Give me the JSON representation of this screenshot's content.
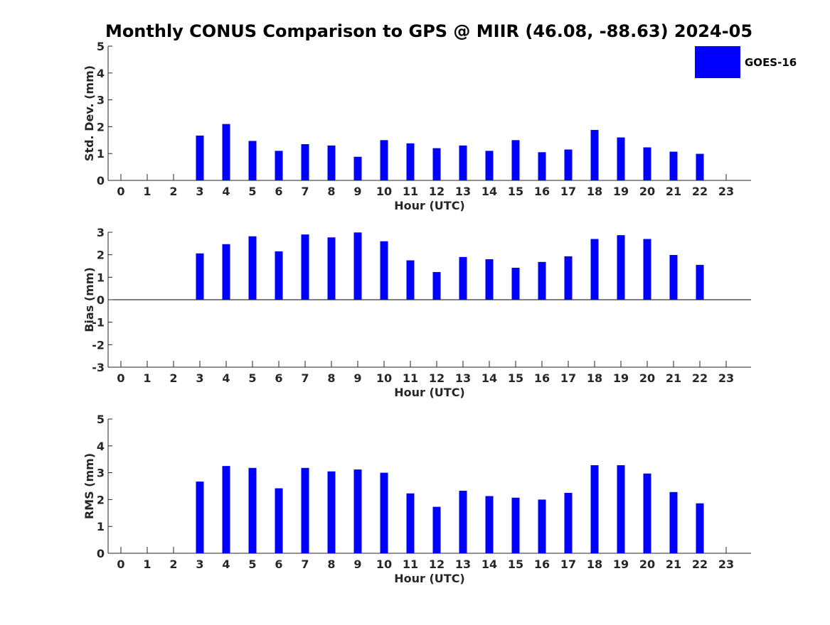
{
  "title": "Monthly CONUS Comparison to GPS @ MIIR (46.08, -88.63) 2024-05",
  "legend": {
    "label": "GOES-16",
    "color": "#0000ff",
    "placement": "top-right"
  },
  "colors": {
    "bar": "#0000ff",
    "axis": "#262626"
  },
  "chart_data": [
    {
      "type": "bar",
      "title": "",
      "xlabel": "Hour (UTC)",
      "ylabel": "Std. Dev. (mm)",
      "categories": [
        "0",
        "1",
        "2",
        "3",
        "4",
        "5",
        "6",
        "7",
        "8",
        "9",
        "10",
        "11",
        "12",
        "13",
        "14",
        "15",
        "16",
        "17",
        "18",
        "19",
        "20",
        "21",
        "22",
        "23"
      ],
      "ylim": [
        0,
        5
      ],
      "yticks": [
        "0",
        "1",
        "2",
        "3",
        "4",
        "5"
      ],
      "series": [
        {
          "name": "GOES-16",
          "values": [
            null,
            null,
            null,
            1.67,
            2.1,
            1.47,
            1.1,
            1.35,
            1.3,
            0.88,
            1.5,
            1.38,
            1.2,
            1.3,
            1.1,
            1.5,
            1.05,
            1.15,
            1.88,
            1.6,
            1.23,
            1.07,
            0.99,
            null
          ]
        }
      ],
      "grid": false
    },
    {
      "type": "bar",
      "title": "",
      "xlabel": "Hour (UTC)",
      "ylabel": "Bias (mm)",
      "categories": [
        "0",
        "1",
        "2",
        "3",
        "4",
        "5",
        "6",
        "7",
        "8",
        "9",
        "10",
        "11",
        "12",
        "13",
        "14",
        "15",
        "16",
        "17",
        "18",
        "19",
        "20",
        "21",
        "22",
        "23"
      ],
      "ylim": [
        -3,
        3
      ],
      "yticks": [
        "-3",
        "-2",
        "-1",
        "0",
        "1",
        "2",
        "3"
      ],
      "series": [
        {
          "name": "GOES-16",
          "values": [
            null,
            null,
            null,
            2.06,
            2.47,
            2.82,
            2.15,
            2.9,
            2.77,
            2.99,
            2.6,
            1.75,
            1.23,
            1.9,
            1.8,
            1.42,
            1.68,
            1.93,
            2.7,
            2.87,
            2.7,
            1.99,
            1.55,
            null
          ]
        }
      ],
      "grid": false
    },
    {
      "type": "bar",
      "title": "",
      "xlabel": "Hour (UTC)",
      "ylabel": "RMS (mm)",
      "categories": [
        "0",
        "1",
        "2",
        "3",
        "4",
        "5",
        "6",
        "7",
        "8",
        "9",
        "10",
        "11",
        "12",
        "13",
        "14",
        "15",
        "16",
        "17",
        "18",
        "19",
        "20",
        "21",
        "22",
        "23"
      ],
      "ylim": [
        0,
        5
      ],
      "yticks": [
        "0",
        "1",
        "2",
        "3",
        "4",
        "5"
      ],
      "series": [
        {
          "name": "GOES-16",
          "values": [
            null,
            null,
            null,
            2.67,
            3.25,
            3.18,
            2.42,
            3.18,
            3.05,
            3.12,
            3.0,
            2.23,
            1.73,
            2.33,
            2.13,
            2.07,
            2.0,
            2.25,
            3.28,
            3.28,
            2.97,
            2.28,
            1.86,
            null
          ]
        }
      ],
      "grid": false
    }
  ]
}
